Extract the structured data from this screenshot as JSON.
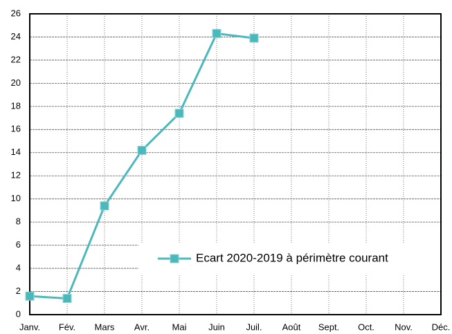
{
  "chart_data": {
    "type": "line",
    "categories": [
      "Janv.",
      "Fév.",
      "Mars",
      "Avr.",
      "Mai",
      "Juin",
      "Juil.",
      "Août",
      "Sept.",
      "Oct.",
      "Nov.",
      "Déc."
    ],
    "series": [
      {
        "name": "Ecart 2020-2019 à périmètre courant",
        "color": "#4bb8bb",
        "values": [
          1.6,
          1.4,
          9.4,
          14.2,
          17.4,
          24.3,
          23.9,
          null,
          null,
          null,
          null,
          null
        ]
      }
    ],
    "ylim": [
      0,
      26
    ],
    "yticks": [
      0,
      2,
      4,
      6,
      8,
      10,
      12,
      14,
      16,
      18,
      20,
      22,
      24,
      26
    ],
    "grid": true,
    "legend": "lower right"
  }
}
